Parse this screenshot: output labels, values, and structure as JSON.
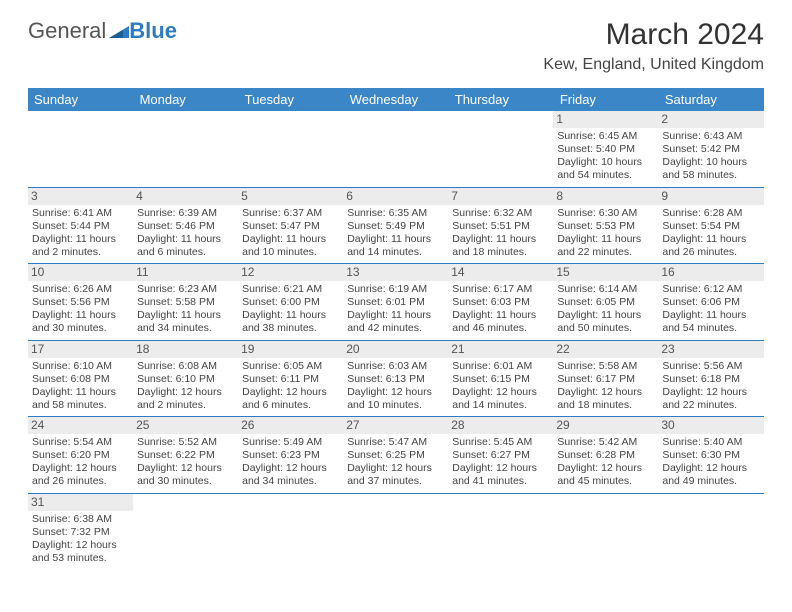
{
  "logo": {
    "general": "General",
    "blue": "Blue"
  },
  "title": "March 2024",
  "location": "Kew, England, United Kingdom",
  "colors": {
    "header_bg": "#3a86c7",
    "header_text": "#ffffff",
    "rule": "#2e7bbf",
    "daynum_bg": "#ececec",
    "text": "#444444"
  },
  "weekdays": [
    "Sunday",
    "Monday",
    "Tuesday",
    "Wednesday",
    "Thursday",
    "Friday",
    "Saturday"
  ],
  "weeks": [
    [
      null,
      null,
      null,
      null,
      null,
      {
        "n": "1",
        "sr": "Sunrise: 6:45 AM",
        "ss": "Sunset: 5:40 PM",
        "d1": "Daylight: 10 hours",
        "d2": "and 54 minutes."
      },
      {
        "n": "2",
        "sr": "Sunrise: 6:43 AM",
        "ss": "Sunset: 5:42 PM",
        "d1": "Daylight: 10 hours",
        "d2": "and 58 minutes."
      }
    ],
    [
      {
        "n": "3",
        "sr": "Sunrise: 6:41 AM",
        "ss": "Sunset: 5:44 PM",
        "d1": "Daylight: 11 hours",
        "d2": "and 2 minutes."
      },
      {
        "n": "4",
        "sr": "Sunrise: 6:39 AM",
        "ss": "Sunset: 5:46 PM",
        "d1": "Daylight: 11 hours",
        "d2": "and 6 minutes."
      },
      {
        "n": "5",
        "sr": "Sunrise: 6:37 AM",
        "ss": "Sunset: 5:47 PM",
        "d1": "Daylight: 11 hours",
        "d2": "and 10 minutes."
      },
      {
        "n": "6",
        "sr": "Sunrise: 6:35 AM",
        "ss": "Sunset: 5:49 PM",
        "d1": "Daylight: 11 hours",
        "d2": "and 14 minutes."
      },
      {
        "n": "7",
        "sr": "Sunrise: 6:32 AM",
        "ss": "Sunset: 5:51 PM",
        "d1": "Daylight: 11 hours",
        "d2": "and 18 minutes."
      },
      {
        "n": "8",
        "sr": "Sunrise: 6:30 AM",
        "ss": "Sunset: 5:53 PM",
        "d1": "Daylight: 11 hours",
        "d2": "and 22 minutes."
      },
      {
        "n": "9",
        "sr": "Sunrise: 6:28 AM",
        "ss": "Sunset: 5:54 PM",
        "d1": "Daylight: 11 hours",
        "d2": "and 26 minutes."
      }
    ],
    [
      {
        "n": "10",
        "sr": "Sunrise: 6:26 AM",
        "ss": "Sunset: 5:56 PM",
        "d1": "Daylight: 11 hours",
        "d2": "and 30 minutes."
      },
      {
        "n": "11",
        "sr": "Sunrise: 6:23 AM",
        "ss": "Sunset: 5:58 PM",
        "d1": "Daylight: 11 hours",
        "d2": "and 34 minutes."
      },
      {
        "n": "12",
        "sr": "Sunrise: 6:21 AM",
        "ss": "Sunset: 6:00 PM",
        "d1": "Daylight: 11 hours",
        "d2": "and 38 minutes."
      },
      {
        "n": "13",
        "sr": "Sunrise: 6:19 AM",
        "ss": "Sunset: 6:01 PM",
        "d1": "Daylight: 11 hours",
        "d2": "and 42 minutes."
      },
      {
        "n": "14",
        "sr": "Sunrise: 6:17 AM",
        "ss": "Sunset: 6:03 PM",
        "d1": "Daylight: 11 hours",
        "d2": "and 46 minutes."
      },
      {
        "n": "15",
        "sr": "Sunrise: 6:14 AM",
        "ss": "Sunset: 6:05 PM",
        "d1": "Daylight: 11 hours",
        "d2": "and 50 minutes."
      },
      {
        "n": "16",
        "sr": "Sunrise: 6:12 AM",
        "ss": "Sunset: 6:06 PM",
        "d1": "Daylight: 11 hours",
        "d2": "and 54 minutes."
      }
    ],
    [
      {
        "n": "17",
        "sr": "Sunrise: 6:10 AM",
        "ss": "Sunset: 6:08 PM",
        "d1": "Daylight: 11 hours",
        "d2": "and 58 minutes."
      },
      {
        "n": "18",
        "sr": "Sunrise: 6:08 AM",
        "ss": "Sunset: 6:10 PM",
        "d1": "Daylight: 12 hours",
        "d2": "and 2 minutes."
      },
      {
        "n": "19",
        "sr": "Sunrise: 6:05 AM",
        "ss": "Sunset: 6:11 PM",
        "d1": "Daylight: 12 hours",
        "d2": "and 6 minutes."
      },
      {
        "n": "20",
        "sr": "Sunrise: 6:03 AM",
        "ss": "Sunset: 6:13 PM",
        "d1": "Daylight: 12 hours",
        "d2": "and 10 minutes."
      },
      {
        "n": "21",
        "sr": "Sunrise: 6:01 AM",
        "ss": "Sunset: 6:15 PM",
        "d1": "Daylight: 12 hours",
        "d2": "and 14 minutes."
      },
      {
        "n": "22",
        "sr": "Sunrise: 5:58 AM",
        "ss": "Sunset: 6:17 PM",
        "d1": "Daylight: 12 hours",
        "d2": "and 18 minutes."
      },
      {
        "n": "23",
        "sr": "Sunrise: 5:56 AM",
        "ss": "Sunset: 6:18 PM",
        "d1": "Daylight: 12 hours",
        "d2": "and 22 minutes."
      }
    ],
    [
      {
        "n": "24",
        "sr": "Sunrise: 5:54 AM",
        "ss": "Sunset: 6:20 PM",
        "d1": "Daylight: 12 hours",
        "d2": "and 26 minutes."
      },
      {
        "n": "25",
        "sr": "Sunrise: 5:52 AM",
        "ss": "Sunset: 6:22 PM",
        "d1": "Daylight: 12 hours",
        "d2": "and 30 minutes."
      },
      {
        "n": "26",
        "sr": "Sunrise: 5:49 AM",
        "ss": "Sunset: 6:23 PM",
        "d1": "Daylight: 12 hours",
        "d2": "and 34 minutes."
      },
      {
        "n": "27",
        "sr": "Sunrise: 5:47 AM",
        "ss": "Sunset: 6:25 PM",
        "d1": "Daylight: 12 hours",
        "d2": "and 37 minutes."
      },
      {
        "n": "28",
        "sr": "Sunrise: 5:45 AM",
        "ss": "Sunset: 6:27 PM",
        "d1": "Daylight: 12 hours",
        "d2": "and 41 minutes."
      },
      {
        "n": "29",
        "sr": "Sunrise: 5:42 AM",
        "ss": "Sunset: 6:28 PM",
        "d1": "Daylight: 12 hours",
        "d2": "and 45 minutes."
      },
      {
        "n": "30",
        "sr": "Sunrise: 5:40 AM",
        "ss": "Sunset: 6:30 PM",
        "d1": "Daylight: 12 hours",
        "d2": "and 49 minutes."
      }
    ],
    [
      {
        "n": "31",
        "sr": "Sunrise: 6:38 AM",
        "ss": "Sunset: 7:32 PM",
        "d1": "Daylight: 12 hours",
        "d2": "and 53 minutes."
      },
      null,
      null,
      null,
      null,
      null,
      null
    ]
  ]
}
